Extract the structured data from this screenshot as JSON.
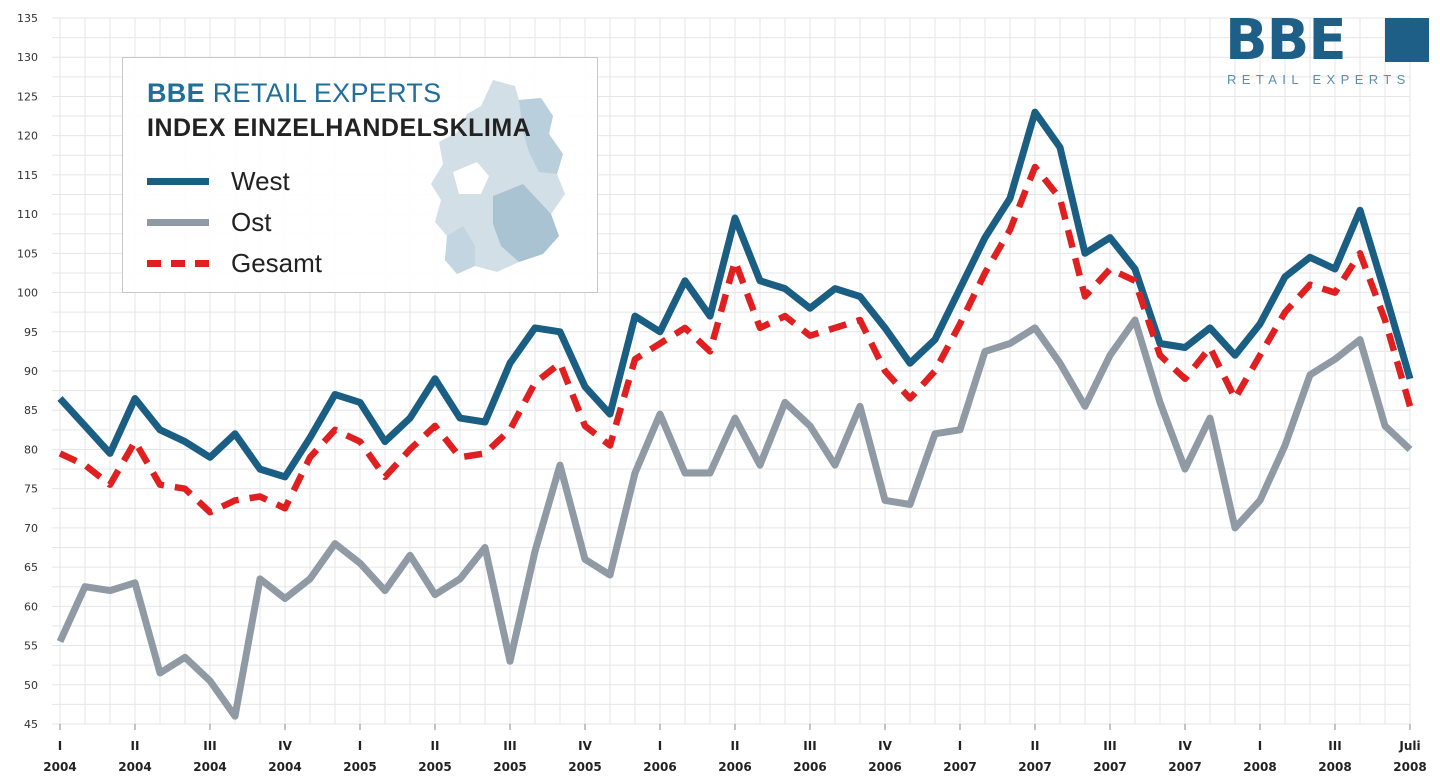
{
  "logo": {
    "word": "BBE",
    "sub": "RETAIL EXPERTS"
  },
  "legend": {
    "title_brand": "BBE",
    "title_rest": " RETAIL EXPERTS",
    "subtitle": "INDEX EINZELHANDELSKLIMA",
    "items": [
      {
        "label": "West",
        "color": "#1b5e84",
        "style": "solid"
      },
      {
        "label": "Ost",
        "color": "#8f9aa4",
        "style": "solid"
      },
      {
        "label": "Gesamt",
        "color": "#e02020",
        "style": "dashed"
      }
    ]
  },
  "chart_data": {
    "type": "line",
    "title": "INDEX EINZELHANDELSKLIMA",
    "ylim": [
      45,
      135
    ],
    "yticks": [
      45,
      50,
      55,
      60,
      65,
      70,
      75,
      80,
      85,
      90,
      95,
      100,
      105,
      110,
      115,
      120,
      125,
      130,
      135
    ],
    "grid": true,
    "legend_position": "top-left",
    "x_labels": [
      {
        "top": "I",
        "bottom": "2004",
        "index": 0
      },
      {
        "top": "II",
        "bottom": "2004",
        "index": 3
      },
      {
        "top": "III",
        "bottom": "2004",
        "index": 6
      },
      {
        "top": "IV",
        "bottom": "2004",
        "index": 9
      },
      {
        "top": "I",
        "bottom": "2005",
        "index": 12
      },
      {
        "top": "II",
        "bottom": "2005",
        "index": 15
      },
      {
        "top": "III",
        "bottom": "2005",
        "index": 18
      },
      {
        "top": "IV",
        "bottom": "2005",
        "index": 21
      },
      {
        "top": "I",
        "bottom": "2006",
        "index": 24
      },
      {
        "top": "II",
        "bottom": "2006",
        "index": 27
      },
      {
        "top": "III",
        "bottom": "2006",
        "index": 30
      },
      {
        "top": "IV",
        "bottom": "2006",
        "index": 33
      },
      {
        "top": "I",
        "bottom": "2007",
        "index": 36
      },
      {
        "top": "II",
        "bottom": "2007",
        "index": 39
      },
      {
        "top": "III",
        "bottom": "2007",
        "index": 42
      },
      {
        "top": "IV",
        "bottom": "2007",
        "index": 45
      },
      {
        "top": "I",
        "bottom": "2008",
        "index": 48
      },
      {
        "top": "III",
        "bottom": "2008",
        "index": 51
      },
      {
        "top": "Juli",
        "bottom": "2008",
        "index": 54
      }
    ],
    "series": [
      {
        "name": "West",
        "color": "#1b5e84",
        "values": [
          86.5,
          83,
          79.5,
          86.5,
          82.5,
          81,
          79,
          82,
          77.5,
          76.5,
          81.5,
          87,
          86,
          81,
          84,
          89,
          84,
          83.5,
          91,
          95.5,
          95,
          88,
          84.5,
          97,
          95,
          101.5,
          97,
          109.5,
          101.5,
          100.5,
          98,
          100.5,
          99.5,
          95.5,
          91,
          94,
          100.5,
          107,
          112,
          123,
          118.5,
          105,
          107,
          103,
          93.5,
          93,
          95.5,
          92,
          96,
          102,
          104.5,
          103,
          110.5,
          100,
          89
        ]
      },
      {
        "name": "Ost",
        "color": "#8f9aa4",
        "values": [
          55.5,
          62.5,
          62,
          63,
          51.5,
          53.5,
          50.5,
          46,
          63.5,
          61,
          63.5,
          68,
          65.5,
          62,
          66.5,
          61.5,
          63.5,
          67.5,
          53,
          67,
          78,
          66,
          64,
          77,
          84.5,
          77,
          77,
          84,
          78,
          86,
          83,
          78,
          85.5,
          73.5,
          73,
          82,
          82.5,
          92.5,
          93.5,
          95.5,
          91,
          85.5,
          92,
          96.5,
          86,
          77.5,
          84,
          70,
          73.5,
          80.5,
          89.5,
          91.5,
          94,
          83,
          80
        ]
      },
      {
        "name": "Gesamt",
        "color": "#e02020",
        "values": [
          79.5,
          78,
          75.5,
          81,
          75.5,
          75,
          72,
          73.5,
          74,
          72.5,
          79,
          82.5,
          81,
          76.5,
          80,
          83,
          79,
          79.5,
          82.5,
          88.5,
          91,
          83,
          80.5,
          91.5,
          93.5,
          95.5,
          92.5,
          104,
          95.5,
          97,
          94.5,
          95.5,
          96.5,
          90,
          86.5,
          90,
          96,
          102.5,
          108,
          116,
          112,
          99.5,
          103,
          101.5,
          92,
          89,
          93,
          86.5,
          92,
          97.5,
          101,
          100,
          105,
          96.5,
          85.5
        ]
      }
    ]
  }
}
